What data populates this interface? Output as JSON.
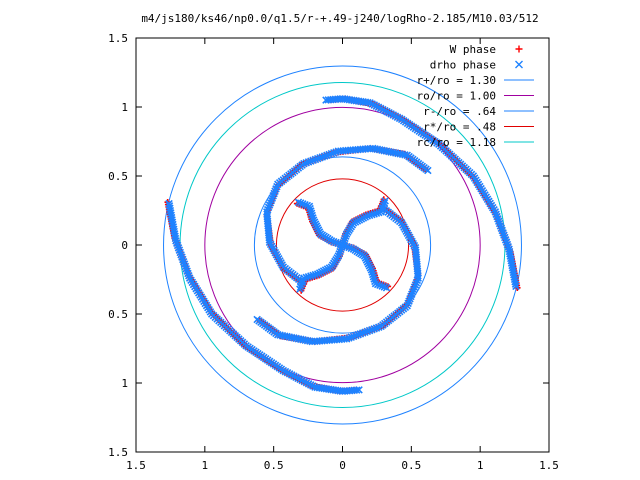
{
  "chart_data": {
    "type": "scatter",
    "title": "m4/js180/ks46/np0.0/q1.5/r-+.49-j240/logRho-2.185/M10.03/512",
    "xlabel": "",
    "ylabel": "",
    "xlim": [
      -1.5,
      1.5
    ],
    "ylim": [
      -1.5,
      1.5
    ],
    "x_tick_values": [
      -1.5,
      -1,
      -0.5,
      0,
      0.5,
      1,
      1.5
    ],
    "x_tick_labels": [
      "1.5",
      "1",
      "0.5",
      "0",
      "0.5",
      "1",
      "1.5"
    ],
    "y_tick_values": [
      1.5,
      1,
      0.5,
      0,
      -0.5,
      -1,
      -1.5
    ],
    "y_tick_labels": [
      "1.5",
      "1",
      "0.5",
      "0",
      "0.5",
      "1",
      "1.5"
    ],
    "grid": false,
    "legend_position": "top-right",
    "series": [
      {
        "name": "W phase",
        "marker": "plus",
        "color": "#ff0000",
        "arms": [
          [
            [
              1.27,
              -0.31
            ],
            [
              1.22,
              -0.05
            ],
            [
              1.12,
              0.22
            ],
            [
              0.96,
              0.48
            ],
            [
              0.72,
              0.72
            ],
            [
              0.45,
              0.9
            ],
            [
              0.22,
              1.02
            ],
            [
              0.02,
              1.06
            ],
            [
              -0.1,
              1.05
            ]
          ],
          [
            [
              -1.27,
              0.31
            ],
            [
              -1.22,
              0.05
            ],
            [
              -1.12,
              -0.22
            ],
            [
              -0.96,
              -0.48
            ],
            [
              -0.72,
              -0.72
            ],
            [
              -0.45,
              -0.9
            ],
            [
              -0.22,
              -1.02
            ],
            [
              -0.02,
              -1.06
            ],
            [
              0.1,
              -1.05
            ]
          ],
          [
            [
              0.28,
              0.28
            ],
            [
              0.42,
              0.18
            ],
            [
              0.52,
              0.0
            ],
            [
              0.55,
              -0.22
            ],
            [
              0.48,
              -0.42
            ],
            [
              0.3,
              -0.58
            ],
            [
              0.05,
              -0.67
            ],
            [
              -0.2,
              -0.7
            ],
            [
              -0.45,
              -0.66
            ],
            [
              -0.6,
              -0.55
            ]
          ],
          [
            [
              -0.28,
              -0.28
            ],
            [
              -0.42,
              -0.18
            ],
            [
              -0.52,
              0.0
            ],
            [
              -0.55,
              0.22
            ],
            [
              -0.48,
              0.42
            ],
            [
              -0.3,
              0.58
            ],
            [
              -0.05,
              0.67
            ],
            [
              0.2,
              0.7
            ],
            [
              0.45,
              0.66
            ],
            [
              0.6,
              0.55
            ]
          ],
          [
            [
              0,
              0
            ],
            [
              0.08,
              -0.02
            ],
            [
              0.17,
              -0.07
            ],
            [
              0.22,
              -0.17
            ],
            [
              0.25,
              -0.27
            ],
            [
              0.33,
              -0.3
            ]
          ],
          [
            [
              0,
              0
            ],
            [
              0.02,
              0.08
            ],
            [
              0.07,
              0.17
            ],
            [
              0.17,
              0.22
            ],
            [
              0.27,
              0.25
            ],
            [
              0.3,
              0.33
            ]
          ],
          [
            [
              0,
              0
            ],
            [
              -0.08,
              0.02
            ],
            [
              -0.17,
              0.07
            ],
            [
              -0.22,
              0.17
            ],
            [
              -0.25,
              0.27
            ],
            [
              -0.33,
              0.3
            ]
          ],
          [
            [
              0,
              0
            ],
            [
              -0.02,
              -0.08
            ],
            [
              -0.07,
              -0.17
            ],
            [
              -0.17,
              -0.22
            ],
            [
              -0.27,
              -0.25
            ],
            [
              -0.3,
              -0.33
            ]
          ]
        ]
      },
      {
        "name": "drho phase",
        "marker": "cross",
        "color": "#1e82ff",
        "arms": [
          [
            [
              1.26,
              -0.3
            ],
            [
              1.21,
              -0.03
            ],
            [
              1.11,
              0.24
            ],
            [
              0.95,
              0.5
            ],
            [
              0.7,
              0.73
            ],
            [
              0.43,
              0.91
            ],
            [
              0.2,
              1.03
            ],
            [
              0.0,
              1.06
            ],
            [
              -0.12,
              1.05
            ]
          ],
          [
            [
              -1.26,
              0.3
            ],
            [
              -1.21,
              0.03
            ],
            [
              -1.11,
              -0.24
            ],
            [
              -0.95,
              -0.5
            ],
            [
              -0.7,
              -0.73
            ],
            [
              -0.43,
              -0.91
            ],
            [
              -0.2,
              -1.03
            ],
            [
              0.0,
              -1.06
            ],
            [
              0.12,
              -1.05
            ]
          ],
          [
            [
              0.29,
              0.27
            ],
            [
              0.43,
              0.16
            ],
            [
              0.53,
              -0.02
            ],
            [
              0.55,
              -0.24
            ],
            [
              0.47,
              -0.44
            ],
            [
              0.28,
              -0.59
            ],
            [
              0.03,
              -0.68
            ],
            [
              -0.22,
              -0.7
            ],
            [
              -0.47,
              -0.65
            ],
            [
              -0.62,
              -0.54
            ]
          ],
          [
            [
              -0.29,
              -0.27
            ],
            [
              -0.43,
              -0.16
            ],
            [
              -0.53,
              0.02
            ],
            [
              -0.55,
              0.24
            ],
            [
              -0.47,
              0.44
            ],
            [
              -0.28,
              0.59
            ],
            [
              -0.03,
              0.68
            ],
            [
              0.22,
              0.7
            ],
            [
              0.47,
              0.65
            ],
            [
              0.62,
              0.54
            ]
          ],
          [
            [
              0,
              0
            ],
            [
              0.08,
              -0.03
            ],
            [
              0.16,
              -0.08
            ],
            [
              0.21,
              -0.18
            ],
            [
              0.24,
              -0.28
            ],
            [
              0.32,
              -0.31
            ]
          ],
          [
            [
              0,
              0
            ],
            [
              0.03,
              0.08
            ],
            [
              0.08,
              0.16
            ],
            [
              0.18,
              0.21
            ],
            [
              0.28,
              0.24
            ],
            [
              0.31,
              0.32
            ]
          ],
          [
            [
              0,
              0
            ],
            [
              -0.08,
              0.03
            ],
            [
              -0.16,
              0.08
            ],
            [
              -0.21,
              0.18
            ],
            [
              -0.24,
              0.28
            ],
            [
              -0.32,
              0.31
            ]
          ],
          [
            [
              0,
              0
            ],
            [
              -0.03,
              -0.08
            ],
            [
              -0.08,
              -0.16
            ],
            [
              -0.18,
              -0.21
            ],
            [
              -0.28,
              -0.24
            ],
            [
              -0.31,
              -0.32
            ]
          ]
        ]
      }
    ],
    "circles": [
      {
        "name": "r+/ro = 1.30",
        "radius": 1.3,
        "color": "#1e82ff"
      },
      {
        "name": "ro/ro = 1.00",
        "radius": 1.0,
        "color": "#a000a0"
      },
      {
        "name": "r-/ro = .64",
        "radius": 0.64,
        "color": "#1e82ff"
      },
      {
        "name": "r*/ro = .48",
        "radius": 0.48,
        "color": "#e00000"
      },
      {
        "name": "rc/ro = 1.18",
        "radius": 1.18,
        "color": "#00c8c8"
      }
    ]
  }
}
